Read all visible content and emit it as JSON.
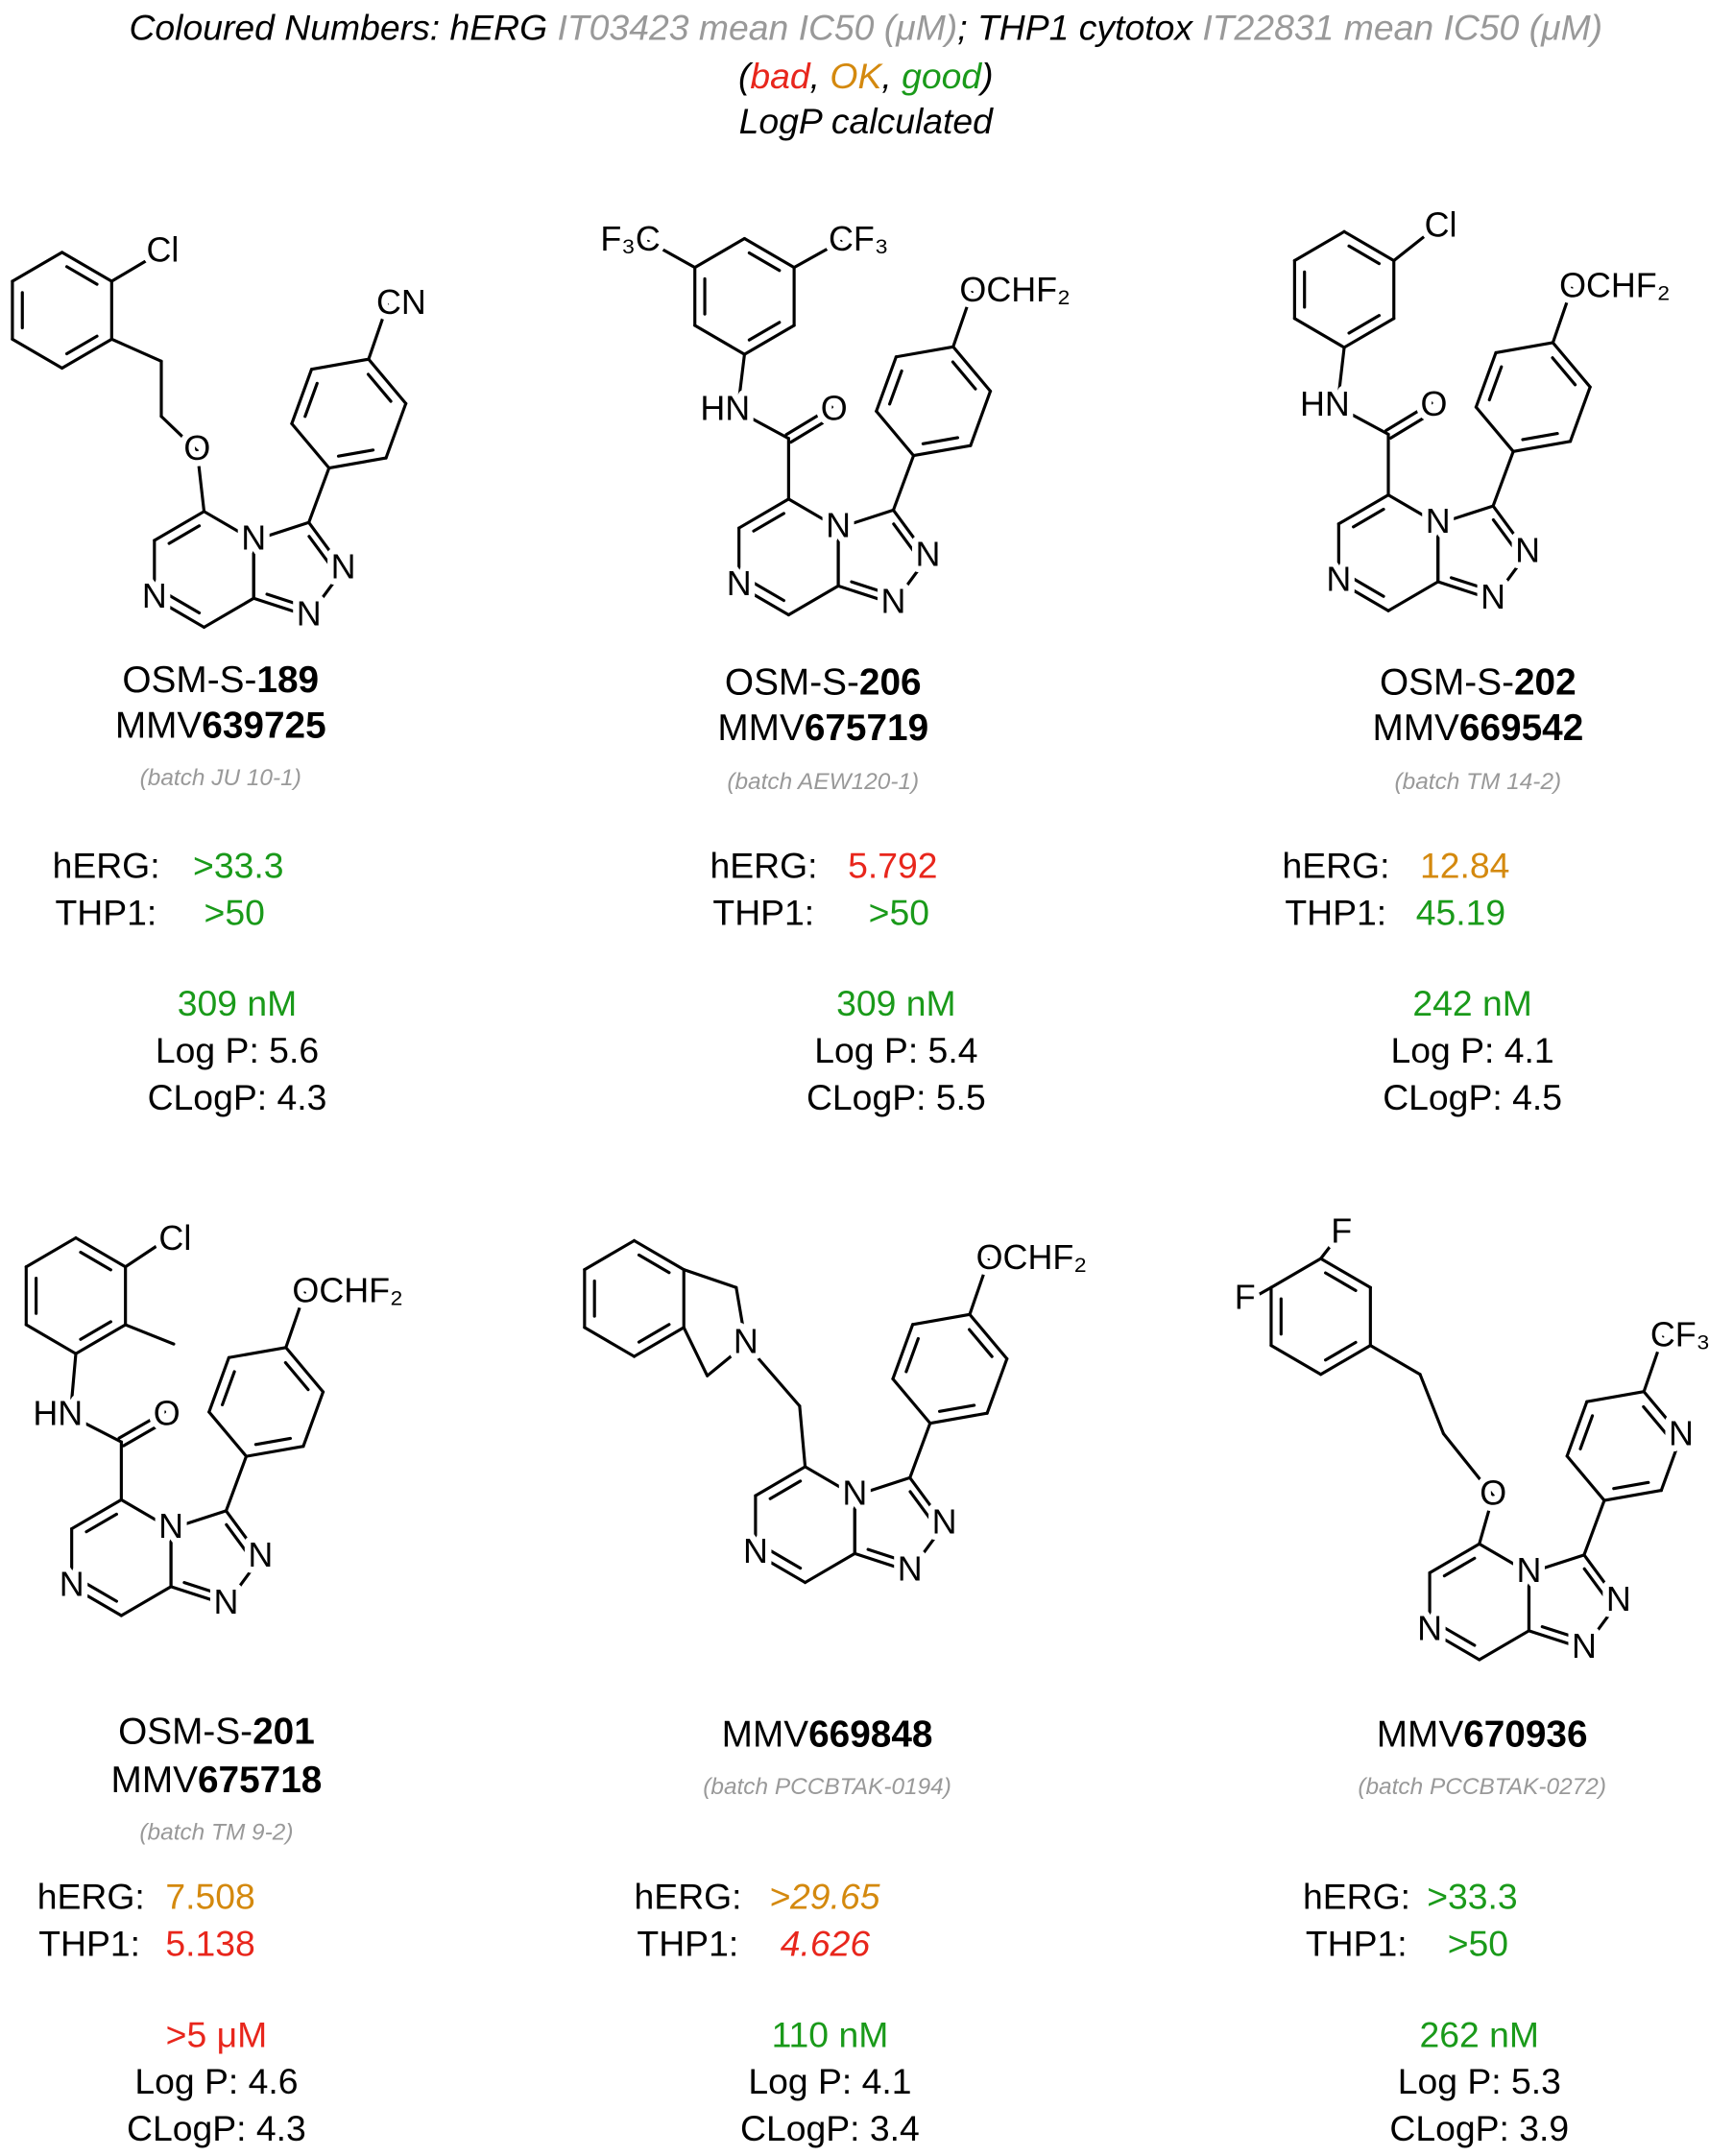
{
  "header": {
    "line1": [
      "Coloured Numbers: hERG ",
      "IT03423 mean IC50 (μM)",
      "; THP1 cytotox ",
      "IT22831 mean IC50 (μM)"
    ],
    "legend": [
      "(",
      "bad",
      ", ",
      "OK",
      ", ",
      "good",
      ")"
    ],
    "line3": "LogP calculated"
  },
  "colors": {
    "bad": "#e8261c",
    "ok": "#d4890e",
    "good": "#1a9a1a",
    "note": "#999999"
  },
  "compounds": [
    {
      "osm": [
        "OSM-S-",
        "189"
      ],
      "mmv": [
        "MMV",
        "639725"
      ],
      "batch": "(batch JU 10-1)",
      "herg_label": "hERG:",
      "herg": ">33.3",
      "herg_rating": "good",
      "thp1_label": "THP1:",
      "thp1": ">50",
      "thp1_rating": "good",
      "potency": "309 nM",
      "potency_rating": "good",
      "logp": "Log P: 5.6",
      "clogp": "CLogP: 4.3",
      "atoms": [
        "N",
        "N",
        "N",
        "N",
        "O",
        "Cl",
        "CN"
      ]
    },
    {
      "osm": [
        "OSM-S-",
        "206"
      ],
      "mmv": [
        "MMV",
        "675719"
      ],
      "batch": "(batch AEW120-1)",
      "herg_label": "hERG:",
      "herg": "5.792",
      "herg_rating": "bad",
      "thp1_label": "THP1:",
      "thp1": ">50",
      "thp1_rating": "good",
      "potency": "309 nM",
      "potency_rating": "good",
      "logp": "Log P: 5.4",
      "clogp": "CLogP: 5.5",
      "atoms": [
        "N",
        "N",
        "N",
        "N",
        "O",
        "HN",
        "F₃C",
        "CF₃",
        "OCHF₂"
      ]
    },
    {
      "osm": [
        "OSM-S-",
        "202"
      ],
      "mmv": [
        "MMV",
        "669542"
      ],
      "batch": "(batch TM 14-2)",
      "herg_label": "hERG:",
      "herg": "12.84",
      "herg_rating": "ok",
      "thp1_label": "THP1:",
      "thp1": "45.19",
      "thp1_rating": "good",
      "potency": "242 nM",
      "potency_rating": "good",
      "logp": "Log P: 4.1",
      "clogp": "CLogP: 4.5",
      "atoms": [
        "N",
        "N",
        "N",
        "N",
        "O",
        "HN",
        "Cl",
        "OCHF₂"
      ]
    },
    {
      "osm": [
        "OSM-S-",
        "201"
      ],
      "mmv": [
        "MMV",
        "675718"
      ],
      "batch": "(batch TM 9-2)",
      "herg_label": "hERG:",
      "herg": "7.508",
      "herg_rating": "ok",
      "thp1_label": "THP1:",
      "thp1": "5.138",
      "thp1_rating": "bad",
      "potency": ">5 μM",
      "potency_rating": "bad",
      "logp": "Log P: 4.6",
      "clogp": "CLogP: 4.3",
      "atoms": [
        "N",
        "N",
        "N",
        "N",
        "O",
        "HN",
        "Cl",
        "OCHF₂"
      ]
    },
    {
      "mmv": [
        "MMV",
        "669848"
      ],
      "batch": "(batch PCCBTAK-0194)",
      "herg_label": "hERG:",
      "herg": ">29.65",
      "herg_rating": "ok",
      "thp1_label": "THP1:",
      "thp1": "4.626",
      "thp1_rating": "bad",
      "values_italic": true,
      "potency": "110 nM",
      "potency_rating": "good",
      "logp": "Log P: 4.1",
      "clogp": "CLogP: 3.4",
      "atoms": [
        "N",
        "N",
        "N",
        "N",
        "N",
        "OCHF₂"
      ]
    },
    {
      "mmv": [
        "MMV",
        "670936"
      ],
      "batch": "(batch PCCBTAK-0272)",
      "herg_label": "hERG:",
      "herg": ">33.3",
      "herg_rating": "good",
      "thp1_label": "THP1:",
      "thp1": ">50",
      "thp1_rating": "good",
      "potency": "262 nM",
      "potency_rating": "good",
      "logp": "Log P: 5.3",
      "clogp": "CLogP: 3.9",
      "atoms": [
        "N",
        "N",
        "N",
        "N",
        "O",
        "F",
        "F",
        "N",
        "CF₃"
      ]
    }
  ]
}
